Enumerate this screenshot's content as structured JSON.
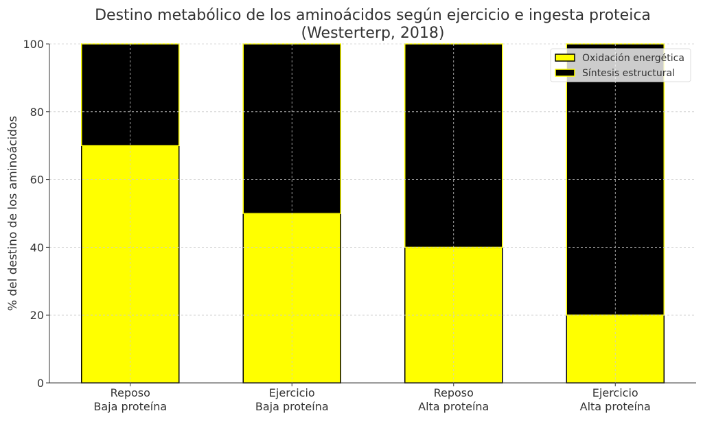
{
  "chart_data": {
    "type": "bar",
    "stacked": true,
    "title": "Destino metabólico de los aminoácidos según ejercicio e ingesta proteica",
    "subtitle": "(Westerterp, 2018)",
    "xlabel": "",
    "ylabel": "% del destino de los aminoácidos",
    "ylim": [
      0,
      100
    ],
    "yticks": [
      0,
      20,
      40,
      60,
      80,
      100
    ],
    "grid": true,
    "legend_position": "top-right",
    "categories": [
      [
        "Reposo",
        "Baja proteína"
      ],
      [
        "Ejercicio",
        "Baja proteína"
      ],
      [
        "Reposo",
        "Alta proteína"
      ],
      [
        "Ejercicio",
        "Alta proteína"
      ]
    ],
    "series": [
      {
        "name": "Oxidación energética",
        "values": [
          70,
          50,
          40,
          20
        ],
        "color": "#ffff00",
        "edge": "#000000"
      },
      {
        "name": "Síntesis estructural",
        "values": [
          30,
          50,
          60,
          80
        ],
        "color": "#000000",
        "edge": "#ffff00"
      }
    ]
  }
}
